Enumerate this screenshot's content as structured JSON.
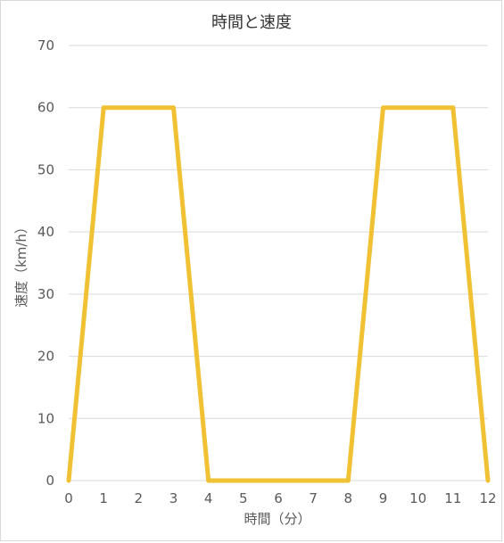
{
  "chart_data": {
    "type": "line",
    "title": "時間と速度",
    "xlabel": "時間（分）",
    "ylabel": "速度（km/h）",
    "x": [
      0,
      1,
      2,
      3,
      4,
      5,
      6,
      7,
      8,
      9,
      10,
      11,
      12
    ],
    "series": [
      {
        "values": [
          0,
          60,
          60,
          60,
          0,
          0,
          0,
          0,
          0,
          60,
          60,
          60,
          0
        ]
      }
    ],
    "xlim": [
      0,
      12
    ],
    "ylim": [
      0,
      70
    ],
    "x_ticks": [
      0,
      1,
      2,
      3,
      4,
      5,
      6,
      7,
      8,
      9,
      10,
      11,
      12
    ],
    "y_ticks": [
      0,
      10,
      20,
      30,
      40,
      50,
      60,
      70
    ],
    "grid": true,
    "legend": "none",
    "colors": {
      "line": "#f0c233",
      "grid": "#d9d9d9",
      "text": "#595959"
    }
  }
}
